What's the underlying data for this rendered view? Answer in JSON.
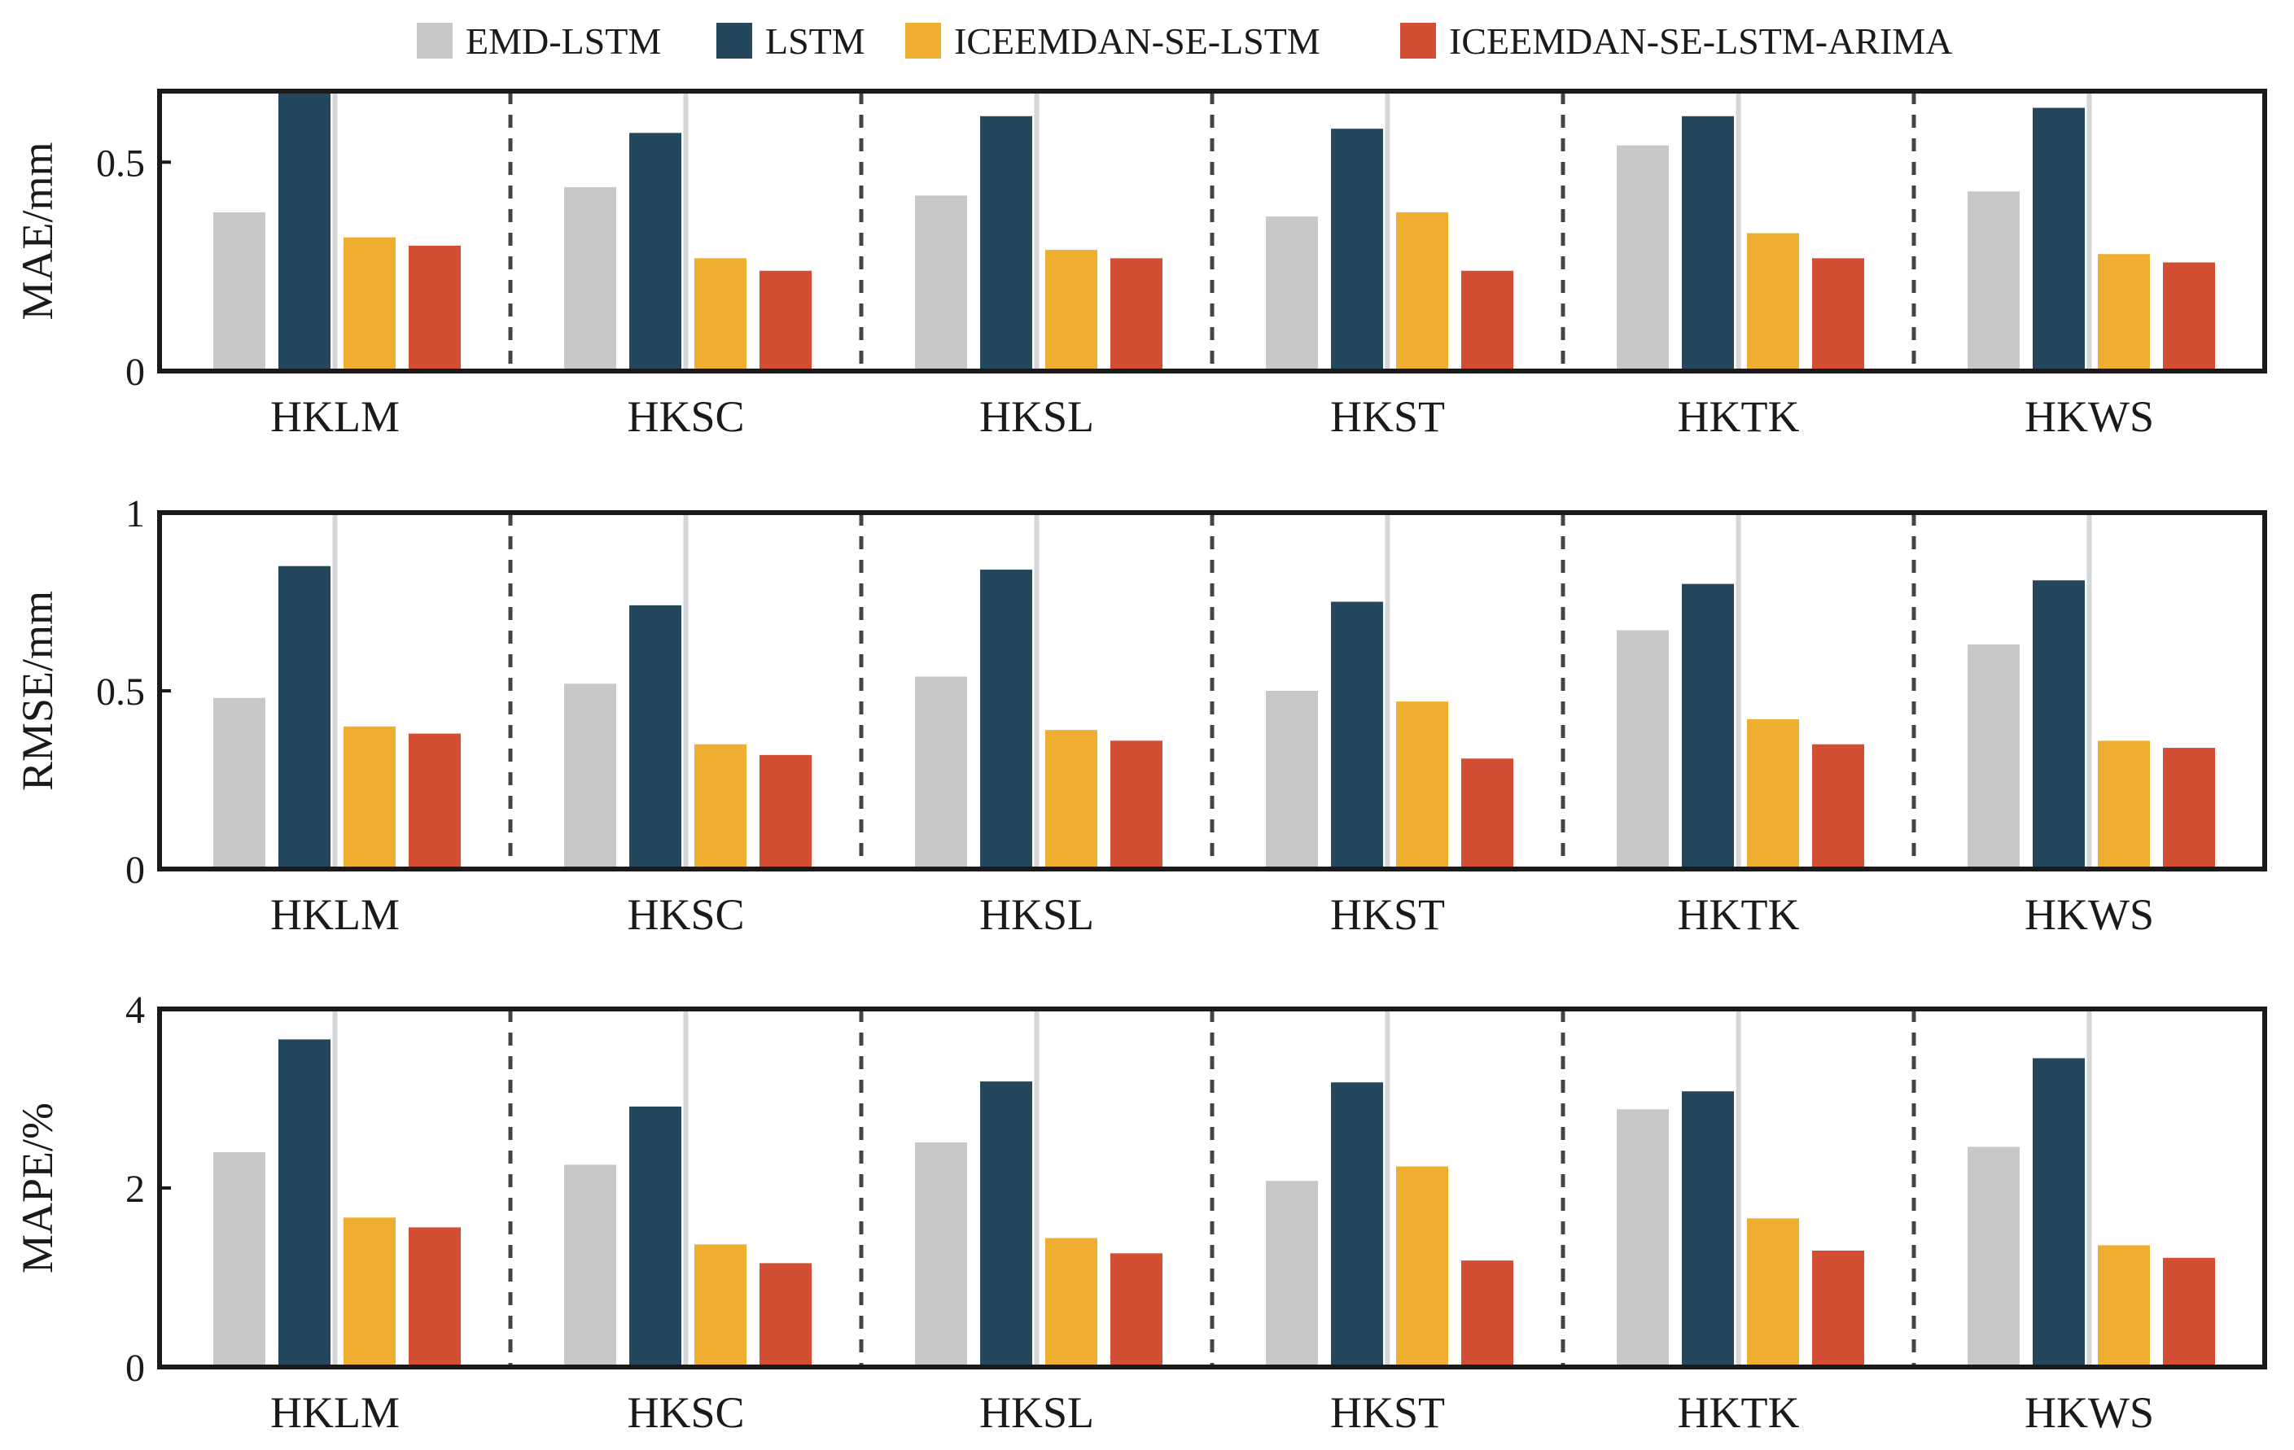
{
  "legend": [
    {
      "name": "EMD-LSTM",
      "color": "#c7c8ca"
    },
    {
      "name": "LSTM",
      "color": "#25475e"
    },
    {
      "name": "ICEEMDAN-SE-LSTM",
      "color": "#f0ae30"
    },
    {
      "name": "ICEEMDAN-SE-LSTM-ARIMA",
      "color": "#d24f33"
    }
  ],
  "chart_data": [
    {
      "type": "bar",
      "ylabel": "MAE/mm",
      "ylim": [
        0,
        0.67
      ],
      "yticks": [
        0,
        0.5
      ],
      "yticklabels": [
        "0",
        "0.5"
      ],
      "categories": [
        "HKLM",
        "HKSC",
        "HKSL",
        "HKST",
        "HKTK",
        "HKWS"
      ],
      "series": [
        {
          "name": "EMD-LSTM",
          "values": [
            0.38,
            0.44,
            0.42,
            0.37,
            0.54,
            0.43
          ]
        },
        {
          "name": "LSTM",
          "values": [
            0.67,
            0.57,
            0.61,
            0.58,
            0.61,
            0.63
          ]
        },
        {
          "name": "ICEEMDAN-SE-LSTM",
          "values": [
            0.32,
            0.27,
            0.29,
            0.38,
            0.33,
            0.28
          ]
        },
        {
          "name": "ICEEMDAN-SE-LSTM-ARIMA",
          "values": [
            0.3,
            0.24,
            0.27,
            0.24,
            0.27,
            0.26
          ]
        }
      ]
    },
    {
      "type": "bar",
      "ylabel": "RMSE/mm",
      "ylim": [
        0,
        1.0
      ],
      "yticks": [
        0,
        0.5,
        1
      ],
      "yticklabels": [
        "0",
        "0.5",
        "1"
      ],
      "categories": [
        "HKLM",
        "HKSC",
        "HKSL",
        "HKST",
        "HKTK",
        "HKWS"
      ],
      "series": [
        {
          "name": "EMD-LSTM",
          "values": [
            0.48,
            0.52,
            0.54,
            0.5,
            0.67,
            0.63
          ]
        },
        {
          "name": "LSTM",
          "values": [
            0.85,
            0.74,
            0.84,
            0.75,
            0.8,
            0.81
          ]
        },
        {
          "name": "ICEEMDAN-SE-LSTM",
          "values": [
            0.4,
            0.35,
            0.39,
            0.47,
            0.42,
            0.36
          ]
        },
        {
          "name": "ICEEMDAN-SE-LSTM-ARIMA",
          "values": [
            0.38,
            0.32,
            0.36,
            0.31,
            0.35,
            0.34
          ]
        }
      ]
    },
    {
      "type": "bar",
      "ylabel": "MAPE/%",
      "ylim": [
        0,
        4.0
      ],
      "yticks": [
        0,
        2,
        4
      ],
      "yticklabels": [
        "0",
        "2",
        "4"
      ],
      "categories": [
        "HKLM",
        "HKSC",
        "HKSL",
        "HKST",
        "HKTK",
        "HKWS"
      ],
      "series": [
        {
          "name": "EMD-LSTM",
          "values": [
            2.4,
            2.26,
            2.51,
            2.08,
            2.88,
            2.46
          ]
        },
        {
          "name": "LSTM",
          "values": [
            3.66,
            2.91,
            3.19,
            3.18,
            3.08,
            3.45
          ]
        },
        {
          "name": "ICEEMDAN-SE-LSTM",
          "values": [
            1.67,
            1.37,
            1.44,
            2.24,
            1.66,
            1.36
          ]
        },
        {
          "name": "ICEEMDAN-SE-LSTM-ARIMA",
          "values": [
            1.56,
            1.16,
            1.27,
            1.19,
            1.3,
            1.22
          ]
        }
      ]
    }
  ]
}
